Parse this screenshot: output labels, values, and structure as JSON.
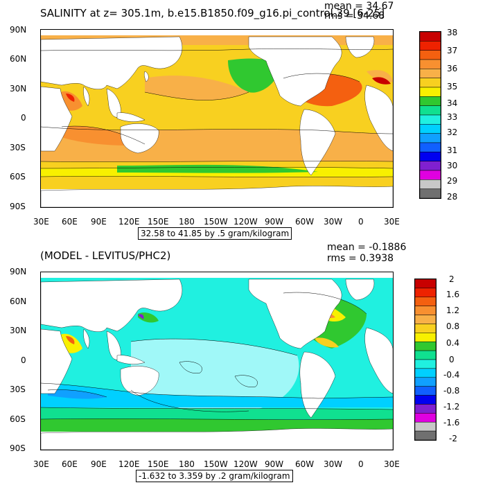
{
  "panels": [
    {
      "title": "SALINITY at z= 305.1m, b.e15.B1850.f09_g16.pi_control.39 [6-25]",
      "mean": "mean = 34.67",
      "rms": "rms = 34.68",
      "lat_ticks": [
        "90N",
        "60N",
        "30N",
        "0",
        "30S",
        "60S",
        "90S"
      ],
      "lon_ticks": [
        "30E",
        "60E",
        "90E",
        "120E",
        "150E",
        "180",
        "150W",
        "120W",
        "90W",
        "60W",
        "30W",
        "0",
        "30E"
      ],
      "range_label": "32.58 to 41.85 by .5 gram/kilogram",
      "colorbar": {
        "labels": [
          "38",
          "37",
          "36",
          "35",
          "34",
          "33",
          "32",
          "31",
          "30",
          "29",
          "28"
        ],
        "colors": [
          "#c80000",
          "#ee2200",
          "#f46010",
          "#f89030",
          "#f8b048",
          "#f8d020",
          "#f8f000",
          "#30c830",
          "#10e090",
          "#20f0e0",
          "#00d0ff",
          "#10a0ff",
          "#1060ff",
          "#0000f0",
          "#8020d0",
          "#e000e0",
          "#c8c8c8",
          "#707070"
        ]
      }
    },
    {
      "title": "(MODEL - LEVITUS/PHC2)",
      "mean": "mean = -0.1886",
      "rms": "rms = 0.3938",
      "lat_ticks": [
        "90N",
        "60N",
        "30N",
        "0",
        "30S",
        "60S",
        "90S"
      ],
      "lon_ticks": [
        "30E",
        "60E",
        "90E",
        "120E",
        "150E",
        "180",
        "150W",
        "120W",
        "90W",
        "60W",
        "30W",
        "0",
        "30E"
      ],
      "range_label": "-1.632 to 3.359 by .2 gram/kilogram",
      "colorbar": {
        "labels": [
          "2",
          "1.6",
          "1.2",
          "0.8",
          "0.4",
          "0",
          "-0.4",
          "-0.8",
          "-1.2",
          "-1.6",
          "-2"
        ],
        "colors": [
          "#c80000",
          "#ee2200",
          "#f46010",
          "#f89030",
          "#f8b048",
          "#f8d020",
          "#f8f000",
          "#30c830",
          "#10e090",
          "#20f0e0",
          "#00d0ff",
          "#10a0ff",
          "#1060ff",
          "#0000f0",
          "#8020d0",
          "#e000e0",
          "#c8c8c8",
          "#707070"
        ]
      }
    }
  ]
}
